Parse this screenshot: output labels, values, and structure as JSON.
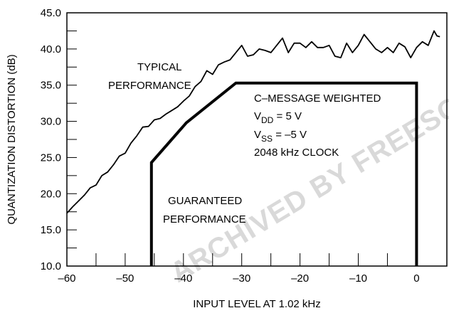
{
  "chart_data": {
    "type": "line",
    "xlabel": "INPUT LEVEL AT 1.02 kHz",
    "ylabel": "QUANTIZATION DISTORTION (dB)",
    "xlim": [
      -60,
      5.2
    ],
    "ylim": [
      10,
      45
    ],
    "xticks": [
      {
        "value": -60,
        "label": "–60"
      },
      {
        "value": -50,
        "label": "–50"
      },
      {
        "value": -40,
        "label": "–40"
      },
      {
        "value": -30,
        "label": "–30"
      },
      {
        "value": -20,
        "label": "–20"
      },
      {
        "value": -10,
        "label": "–10"
      },
      0
    ],
    "yticks": [
      {
        "value": 10,
        "label": "10.0"
      },
      {
        "value": 15,
        "label": "15.0"
      },
      {
        "value": 20,
        "label": "20.0"
      },
      {
        "value": 25,
        "label": "25.0"
      },
      {
        "value": 30,
        "label": "30.0"
      },
      {
        "value": 35,
        "label": "35.0"
      },
      {
        "value": 40,
        "label": "40.0"
      },
      {
        "value": 45,
        "label": "45.0"
      }
    ],
    "series": [
      {
        "color": "#000000",
        "x": [
          -60,
          -59,
          -58,
          -57,
          -56,
          -55,
          -54,
          -53,
          -52,
          -51,
          -50,
          -49,
          -48,
          -47,
          -46,
          -45,
          -44,
          -43,
          -42,
          -41,
          -40,
          -39,
          -38,
          -37,
          -36,
          -35,
          -34,
          -33,
          -32,
          -31,
          -30,
          -29,
          -28,
          -27,
          -26,
          -25,
          -24,
          -23,
          -22,
          -21,
          -20,
          -19,
          -18,
          -17,
          -16,
          -15,
          -14,
          -13,
          -12,
          -11,
          -10,
          -9,
          -8,
          -7,
          -6,
          -5,
          -4,
          -3,
          -2,
          -1,
          0,
          1,
          2,
          3,
          3.5,
          4
        ],
        "values": [
          17.3,
          18.2,
          19,
          19.8,
          20.8,
          21.2,
          22.5,
          23,
          24,
          25.2,
          25.6,
          27,
          28,
          29.2,
          29.3,
          30.2,
          30.4,
          31,
          31.5,
          32,
          32.8,
          33.5,
          34.8,
          35.5,
          37,
          36.5,
          37.8,
          38.2,
          38.5,
          39.5,
          40.5,
          39,
          39.2,
          40,
          39.8,
          39.5,
          40.5,
          41.5,
          39.5,
          40.8,
          40.8,
          40.2,
          41,
          40.2,
          40.2,
          40.5,
          39,
          38.8,
          40.8,
          39.5,
          40.5,
          42,
          41,
          40,
          39.5,
          40.2,
          39.5,
          40.8,
          40.3,
          38.8,
          40.2,
          41,
          40.5,
          42.5,
          41.8,
          41.7
        ]
      },
      {
        "color": "#000000",
        "x": [
          -45.5,
          -45.5,
          -39.5,
          -31,
          0,
          0
        ],
        "values": [
          10,
          24.3,
          29.8,
          35.3,
          35.3,
          10
        ]
      }
    ],
    "annotations": [
      {
        "text": "TYPICAL"
      },
      {
        "text": "PERFORMANCE"
      },
      {
        "text": "C–MESSAGE WEIGHTED"
      },
      {
        "text": "V",
        "sub": "DD",
        "rest": " = 5 V"
      },
      {
        "text": "V",
        "sub": "SS",
        "rest": " = –5 V"
      },
      {
        "text": "2048 kHz CLOCK"
      },
      {
        "text": "GUARANTEED"
      },
      {
        "text": "PERFORMANCE"
      },
      {
        "text": "ARCHIVED BY FREESCALE"
      }
    ]
  }
}
